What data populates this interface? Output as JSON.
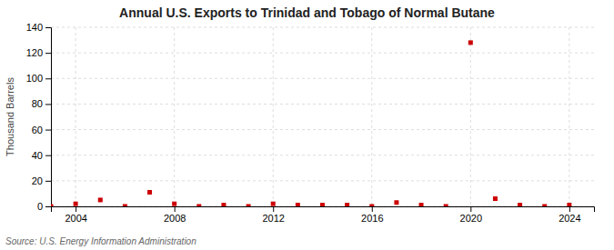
{
  "chart_data": {
    "type": "scatter",
    "title": "Annual U.S. Exports to Trinidad and Tobago of Normal Butane",
    "ylabel": "Thousand Barrels",
    "annotations": [
      "Source: U.S. Energy Information Administration"
    ],
    "x": [
      2003,
      2004,
      2005,
      2006,
      2007,
      2008,
      2009,
      2010,
      2011,
      2012,
      2013,
      2014,
      2015,
      2016,
      2017,
      2018,
      2019,
      2020,
      2021,
      2022,
      2023,
      2024
    ],
    "values": [
      0,
      2,
      5,
      0,
      11,
      2,
      0,
      1,
      0,
      2,
      1,
      1,
      1,
      0,
      3,
      1,
      0,
      128,
      6,
      1,
      0,
      1
    ],
    "color": "#cc0000",
    "marker": "square",
    "xlim": [
      2003.0,
      2025.0
    ],
    "xticks": [
      2004,
      2008,
      2012,
      2016,
      2020,
      2024
    ],
    "ylim": [
      0,
      140
    ],
    "yticks": [
      0,
      20,
      40,
      60,
      80,
      100,
      120,
      140
    ],
    "grid": true
  }
}
